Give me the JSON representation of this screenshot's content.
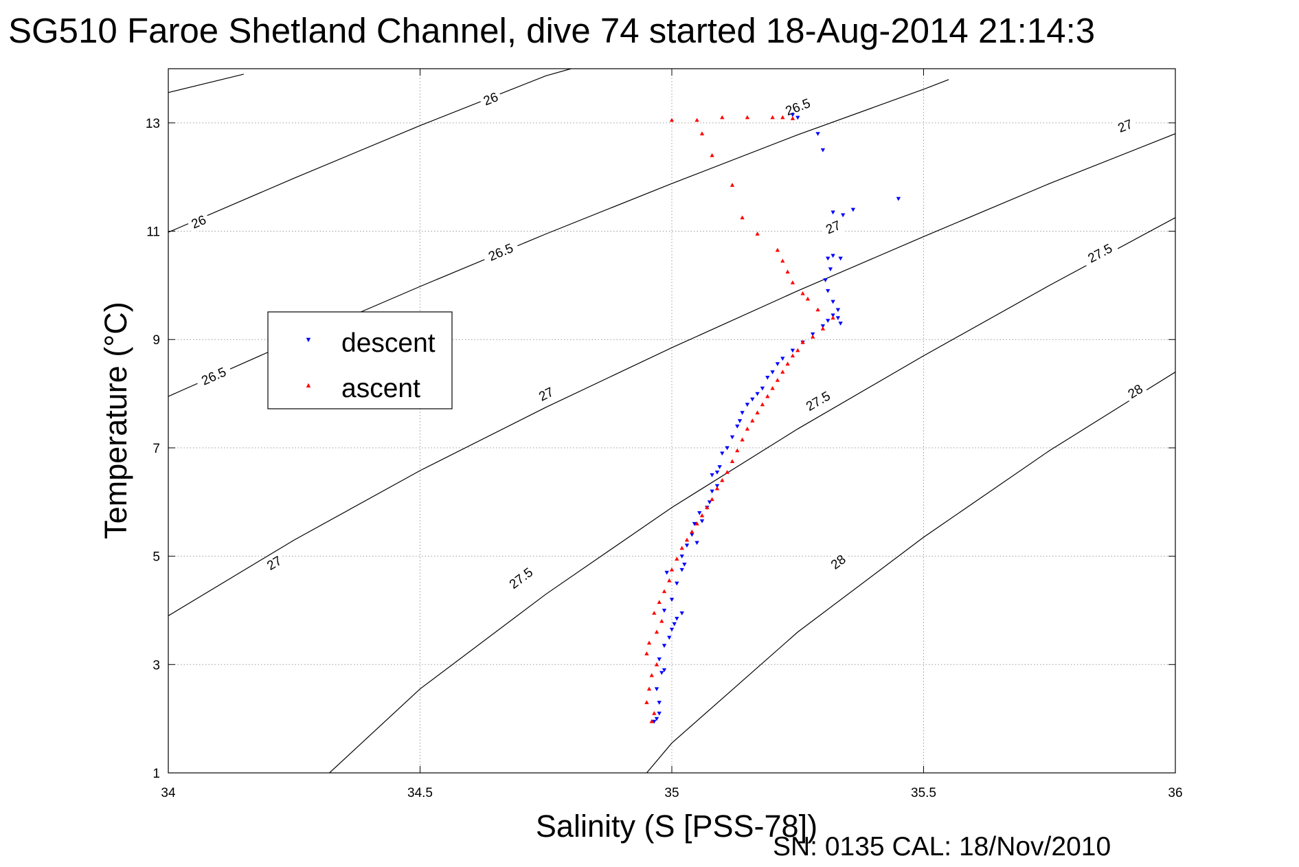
{
  "chart_data": {
    "type": "scatter",
    "title": "SG510 Faroe Shetland Channel, dive 74 started 18-Aug-2014 21:14:3",
    "xlabel": "Salinity (S [PSS-78])",
    "ylabel": "Temperature (°C)",
    "footer": "SN: 0135  CAL: 18/Nov/2010",
    "xlim": [
      34,
      36
    ],
    "ylim": [
      1,
      14
    ],
    "xticks": [
      34,
      34.5,
      35,
      35.5,
      36
    ],
    "xtick_labels": [
      "34",
      "34.5",
      "35",
      "35.5",
      "36"
    ],
    "yticks": [
      1,
      3,
      5,
      7,
      9,
      11,
      13
    ],
    "ytick_labels": [
      "1",
      "3",
      "5",
      "7",
      "9",
      "11",
      "13"
    ],
    "grid": true,
    "legend_position": "upper-left",
    "density_contours": [
      {
        "label": "26",
        "color": "#000000",
        "points": [
          [
            34.0,
            13.56
          ],
          [
            34.15,
            13.9
          ]
        ],
        "labels_at": []
      },
      {
        "label": "26",
        "color": "#000000",
        "points": [
          [
            34.0,
            10.98
          ],
          [
            34.25,
            11.98
          ],
          [
            34.5,
            12.95
          ],
          [
            34.75,
            13.87
          ],
          [
            34.8,
            14.0
          ]
        ],
        "labels_at": [
          [
            34.06,
            11.18
          ],
          [
            34.64,
            13.45
          ]
        ]
      },
      {
        "label": "26.5",
        "color": "#000000",
        "points": [
          [
            34.0,
            7.95
          ],
          [
            34.25,
            8.98
          ],
          [
            34.5,
            9.98
          ],
          [
            34.75,
            10.95
          ],
          [
            35.0,
            11.88
          ],
          [
            35.25,
            12.78
          ],
          [
            35.5,
            13.62
          ],
          [
            35.55,
            13.8
          ]
        ],
        "labels_at": [
          [
            34.09,
            8.33
          ],
          [
            34.66,
            10.62
          ],
          [
            35.25,
            13.3
          ]
        ]
      },
      {
        "label": "27",
        "color": "#000000",
        "points": [
          [
            34.0,
            3.9
          ],
          [
            34.25,
            5.3
          ],
          [
            34.5,
            6.58
          ],
          [
            34.75,
            7.75
          ],
          [
            35.0,
            8.85
          ],
          [
            35.25,
            9.9
          ],
          [
            35.5,
            10.9
          ],
          [
            35.75,
            11.88
          ],
          [
            36.0,
            12.8
          ]
        ],
        "labels_at": [
          [
            34.21,
            4.88
          ],
          [
            34.75,
            8.0
          ],
          [
            35.32,
            11.08
          ],
          [
            35.9,
            12.95
          ]
        ]
      },
      {
        "label": "27.5",
        "color": "#000000",
        "points": [
          [
            34.32,
            1.0
          ],
          [
            34.5,
            2.55
          ],
          [
            34.75,
            4.3
          ],
          [
            35.0,
            5.9
          ],
          [
            35.25,
            7.35
          ],
          [
            35.5,
            8.7
          ],
          [
            35.75,
            10.0
          ],
          [
            36.0,
            11.25
          ]
        ],
        "labels_at": [
          [
            34.7,
            4.6
          ],
          [
            35.29,
            7.87
          ],
          [
            35.85,
            10.6
          ]
        ]
      },
      {
        "label": "28",
        "color": "#000000",
        "points": [
          [
            34.95,
            1.0
          ],
          [
            35.0,
            1.55
          ],
          [
            35.25,
            3.6
          ],
          [
            35.5,
            5.35
          ],
          [
            35.75,
            6.95
          ],
          [
            36.0,
            8.4
          ]
        ],
        "labels_at": [
          [
            35.33,
            4.9
          ],
          [
            35.92,
            8.05
          ]
        ]
      }
    ],
    "series": [
      {
        "name": "descent",
        "color": "#0000ff",
        "marker": "triangle-down",
        "x": [
          34.965,
          34.97,
          34.975,
          34.975,
          34.97,
          34.98,
          34.985,
          34.975,
          34.985,
          34.995,
          35.0,
          35.005,
          35.01,
          35.02,
          34.985,
          35.0,
          35.01,
          34.99,
          35.02,
          35.025,
          35.02,
          35.03,
          35.05,
          35.04,
          35.045,
          35.06,
          35.055,
          35.07,
          35.075,
          35.08,
          35.09,
          35.08,
          35.09,
          35.095,
          35.1,
          35.11,
          35.12,
          35.13,
          35.135,
          35.14,
          35.15,
          35.16,
          35.17,
          35.18,
          35.19,
          35.2,
          35.21,
          35.22,
          35.24,
          35.26,
          35.28,
          35.3,
          35.31,
          35.32,
          35.33,
          35.335,
          35.33,
          35.32,
          35.31,
          35.305,
          35.315,
          35.31,
          35.32,
          35.335,
          35.32,
          35.34,
          35.36,
          35.45,
          35.3,
          35.29,
          35.25,
          35.24
        ],
        "y": [
          1.95,
          2.0,
          2.1,
          2.3,
          2.55,
          2.85,
          2.9,
          3.1,
          3.35,
          3.5,
          3.65,
          3.75,
          3.85,
          3.95,
          4.0,
          4.2,
          4.5,
          4.7,
          4.75,
          4.85,
          5.0,
          5.2,
          5.25,
          5.4,
          5.6,
          5.65,
          5.8,
          5.9,
          6.0,
          6.2,
          6.3,
          6.5,
          6.55,
          6.65,
          6.9,
          7.0,
          7.2,
          7.4,
          7.5,
          7.65,
          7.8,
          7.9,
          8.0,
          8.1,
          8.3,
          8.4,
          8.55,
          8.65,
          8.8,
          8.95,
          9.1,
          9.25,
          9.35,
          9.45,
          9.4,
          9.3,
          9.55,
          9.7,
          9.9,
          10.1,
          10.3,
          10.5,
          10.55,
          10.5,
          11.35,
          11.3,
          11.4,
          11.6,
          12.5,
          12.8,
          13.1,
          13.15
        ]
      },
      {
        "name": "ascent",
        "color": "#ff0000",
        "marker": "triangle-up",
        "x": [
          34.96,
          34.965,
          34.95,
          34.955,
          34.96,
          34.97,
          34.95,
          34.955,
          34.97,
          34.98,
          34.965,
          34.975,
          34.985,
          34.995,
          35.0,
          35.01,
          35.02,
          35.03,
          35.04,
          35.05,
          35.06,
          35.07,
          35.08,
          35.09,
          35.1,
          35.11,
          35.12,
          35.13,
          35.14,
          35.15,
          35.16,
          35.17,
          35.18,
          35.19,
          35.2,
          35.21,
          35.22,
          35.23,
          35.24,
          35.25,
          35.26,
          35.28,
          35.3,
          35.32,
          35.29,
          35.27,
          35.26,
          35.24,
          35.23,
          35.22,
          35.21,
          35.17,
          35.14,
          35.12,
          35.08,
          35.06,
          35.0,
          35.05,
          35.1,
          35.15,
          35.2,
          35.22,
          35.24
        ],
        "y": [
          1.95,
          2.1,
          2.3,
          2.55,
          2.8,
          3.0,
          3.2,
          3.4,
          3.6,
          3.8,
          3.95,
          4.15,
          4.35,
          4.55,
          4.75,
          4.95,
          5.15,
          5.3,
          5.45,
          5.6,
          5.75,
          5.9,
          6.05,
          6.25,
          6.4,
          6.55,
          6.75,
          6.95,
          7.15,
          7.35,
          7.5,
          7.65,
          7.8,
          7.95,
          8.1,
          8.25,
          8.4,
          8.55,
          8.7,
          8.8,
          8.95,
          9.05,
          9.2,
          9.4,
          9.55,
          9.75,
          9.85,
          10.05,
          10.25,
          10.45,
          10.65,
          10.95,
          11.25,
          11.85,
          12.4,
          12.8,
          13.05,
          13.05,
          13.1,
          13.1,
          13.1,
          13.1,
          13.08
        ]
      }
    ]
  }
}
